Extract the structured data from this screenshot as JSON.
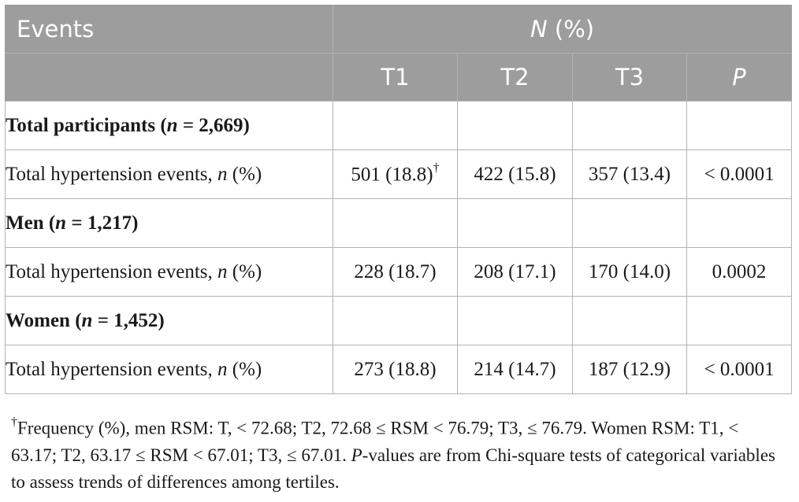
{
  "header": {
    "events": "Events",
    "n_pct_n": "N",
    "n_pct_rest": " (%)",
    "t1": "T1",
    "t2": "T2",
    "t3": "T3",
    "p": "P"
  },
  "rows": [
    {
      "type": "group",
      "pre": "Total participants (",
      "var": "n",
      "post": " = 2,669)"
    },
    {
      "type": "data",
      "label_pre": "Total hypertension events, ",
      "label_var": "n",
      "label_post": " (%)",
      "t1": "501 (18.8)",
      "t1_sup": "†",
      "t2": "422 (15.8)",
      "t3": "357 (13.4)",
      "p": "< 0.0001"
    },
    {
      "type": "group",
      "pre": "Men (",
      "var": "n",
      "post": " = 1,217)"
    },
    {
      "type": "data",
      "label_pre": "Total hypertension events, ",
      "label_var": "n",
      "label_post": " (%)",
      "t1": "228 (18.7)",
      "t2": "208 (17.1)",
      "t3": "170 (14.0)",
      "p": "0.0002"
    },
    {
      "type": "group",
      "pre": "Women (",
      "var": "n",
      "post": " = 1,452)"
    },
    {
      "type": "data",
      "label_pre": "Total hypertension events, ",
      "label_var": "n",
      "label_post": " (%)",
      "t1": "273 (18.8)",
      "t2": "214 (14.7)",
      "t3": "187 (12.9)",
      "p": "< 0.0001"
    }
  ],
  "footnote": {
    "mark": "†",
    "text1": "Frequency (%), men RSM: T, < 72.68; T2, 72.68 ≤ RSM < 76.79; T3, ≤ 76.79. Women RSM: T1, < 63.17; T2, 63.17 ≤ RSM < 67.01; T3, ≤ 67.01. ",
    "p_italic": "P",
    "text2": "-values are from Chi-square tests of categorical variables to assess trends of differences among tertiles."
  }
}
